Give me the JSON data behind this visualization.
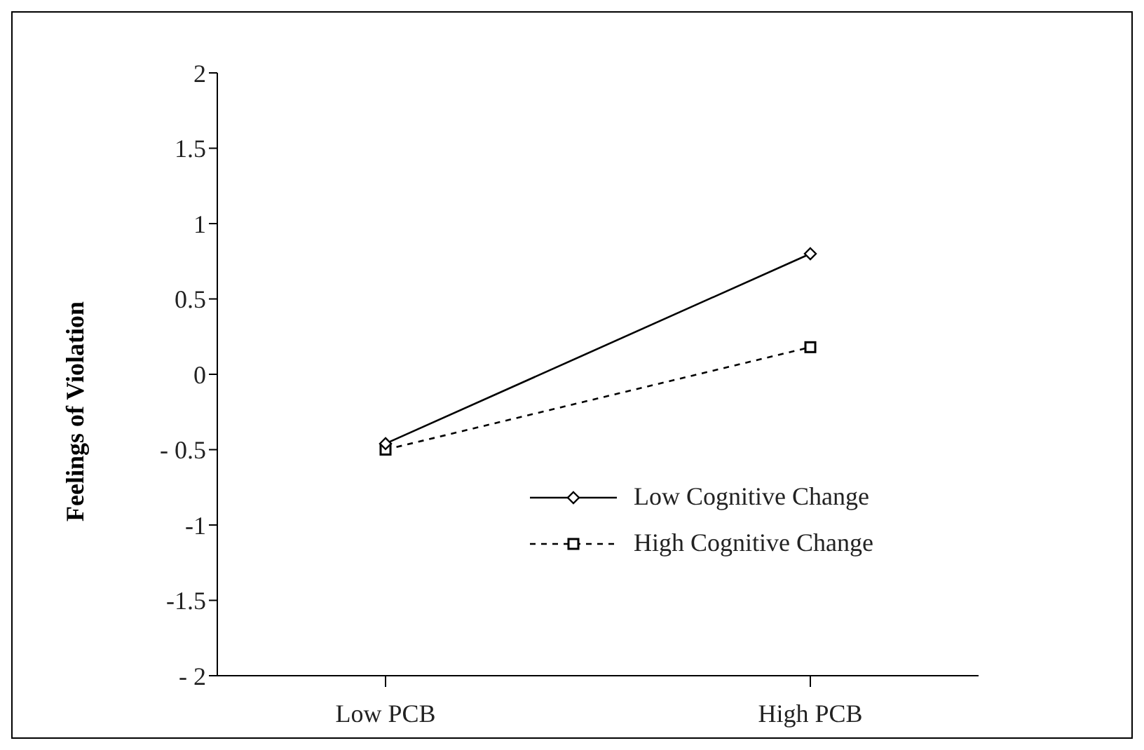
{
  "chart_data": {
    "type": "line",
    "ylabel": "Feelings of Violation",
    "categories": [
      "Low PCB",
      "High PCB"
    ],
    "series": [
      {
        "name": "Low Cognitive Change",
        "color": "#000000",
        "values": [
          -0.46,
          0.8
        ],
        "marker": "diamond",
        "line_style": "solid"
      },
      {
        "name": "High Cognitive Change",
        "color": "#000000",
        "values": [
          -0.5,
          0.18
        ],
        "marker": "square",
        "line_style": "dashed"
      }
    ],
    "ylim": [
      -2,
      2
    ],
    "yticks": [
      {
        "value": -2,
        "label": "- 2"
      },
      {
        "value": -1.5,
        "label": "-1.5"
      },
      {
        "value": -1,
        "label": "-1"
      },
      {
        "value": -0.5,
        "label": "- 0.5"
      },
      0,
      0.5,
      1,
      1.5,
      2
    ],
    "grid": false,
    "legend": "right"
  }
}
